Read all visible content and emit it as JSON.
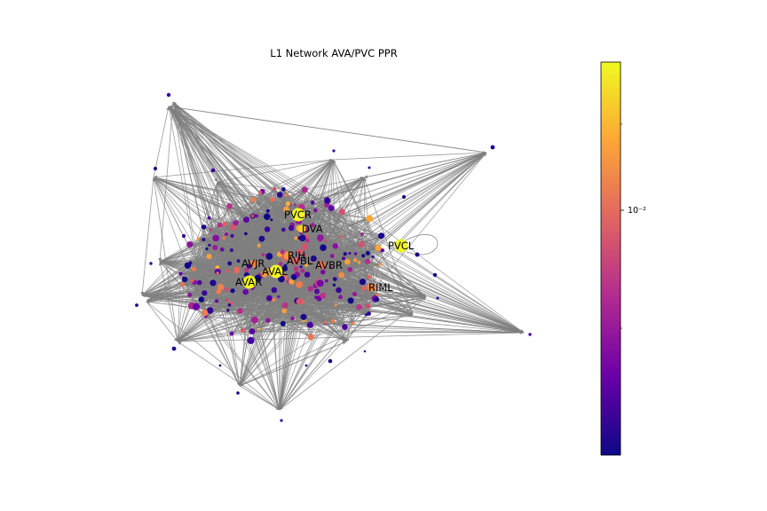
{
  "title": "L1 Network AVA/PVC PPR",
  "edge_color": "#808080",
  "node_colormap": [
    "#0d0887",
    "#6a00a8",
    "#b12a90",
    "#e16462",
    "#fca636",
    "#f0f921"
  ],
  "labeled_nodes": [
    {
      "id": "PVCR",
      "value": 1.0
    },
    {
      "id": "DVA",
      "value": 0.9
    },
    {
      "id": "PVCL",
      "value": 1.0
    },
    {
      "id": "AVJR",
      "value": 0.7
    },
    {
      "id": "RIH",
      "value": 0.75
    },
    {
      "id": "AVBL",
      "value": 0.6
    },
    {
      "id": "AVAL",
      "value": 1.0
    },
    {
      "id": "AVBR",
      "value": 0.65
    },
    {
      "id": "AVAR",
      "value": 1.0
    },
    {
      "id": "RIML",
      "value": 0.7
    }
  ],
  "colorbar": {
    "tick_label": "10⁻²",
    "scale": "log"
  }
}
